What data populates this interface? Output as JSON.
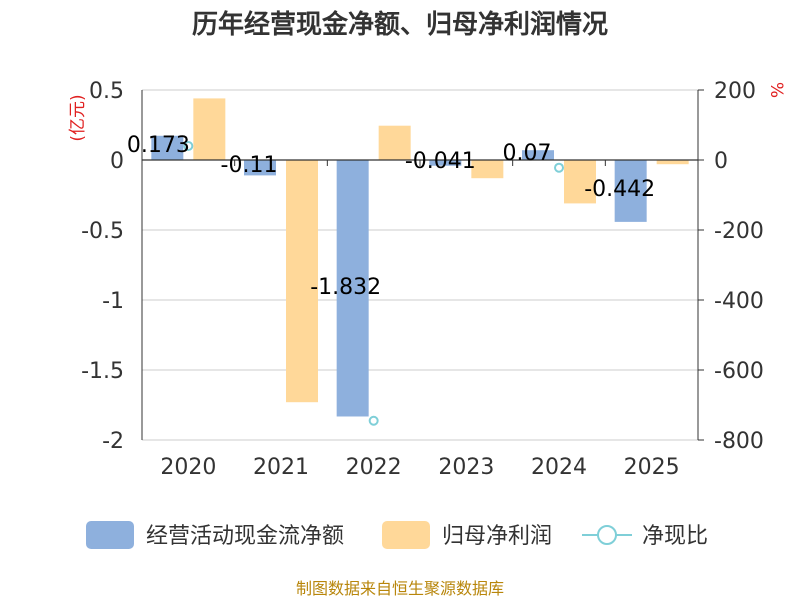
{
  "chart_data": {
    "type": "bar",
    "title": "历年经营现金净额、归母净利润情况",
    "categories": [
      "2020",
      "2021",
      "2022",
      "2023",
      "2024",
      "2025"
    ],
    "left_axis": {
      "unit": "(亿元)",
      "ticks": [
        "0.5",
        "0",
        "-0.5",
        "-1",
        "-1.5",
        "-2"
      ],
      "tick_values": [
        0.5,
        0,
        -0.5,
        -1,
        -1.5,
        -2
      ],
      "ylim": [
        -2,
        0.5
      ]
    },
    "right_axis": {
      "unit": "%",
      "ticks": [
        "200",
        "0",
        "-200",
        "-400",
        "-600",
        "-800"
      ],
      "tick_values": [
        200,
        0,
        -200,
        -400,
        -600,
        -800
      ],
      "ylim": [
        -800,
        200
      ]
    },
    "series": [
      {
        "name": "经营活动现金流净额",
        "axis": "left",
        "kind": "bar",
        "color": "#8eb0dd",
        "values": [
          0.173,
          -0.11,
          -1.832,
          -0.041,
          0.07,
          -0.442
        ],
        "labels": [
          "0.173",
          "-0.11",
          "-1.832",
          "-0.041",
          "0.07",
          "-0.442"
        ]
      },
      {
        "name": "归母净利润",
        "axis": "left",
        "kind": "bar",
        "color": "#ffd899",
        "values": [
          0.44,
          -1.73,
          0.245,
          -0.13,
          -0.31,
          -0.03
        ]
      },
      {
        "name": "净现比",
        "axis": "right",
        "kind": "line-points",
        "color": "#7fcfd8",
        "points": [
          {
            "category": "2020",
            "value": 40
          },
          {
            "category": "2022",
            "value": -745
          },
          {
            "category": "2024",
            "value": -22
          }
        ]
      }
    ],
    "legend_position": "bottom",
    "grid": true,
    "source": "制图数据来自恒生聚源数据库"
  }
}
